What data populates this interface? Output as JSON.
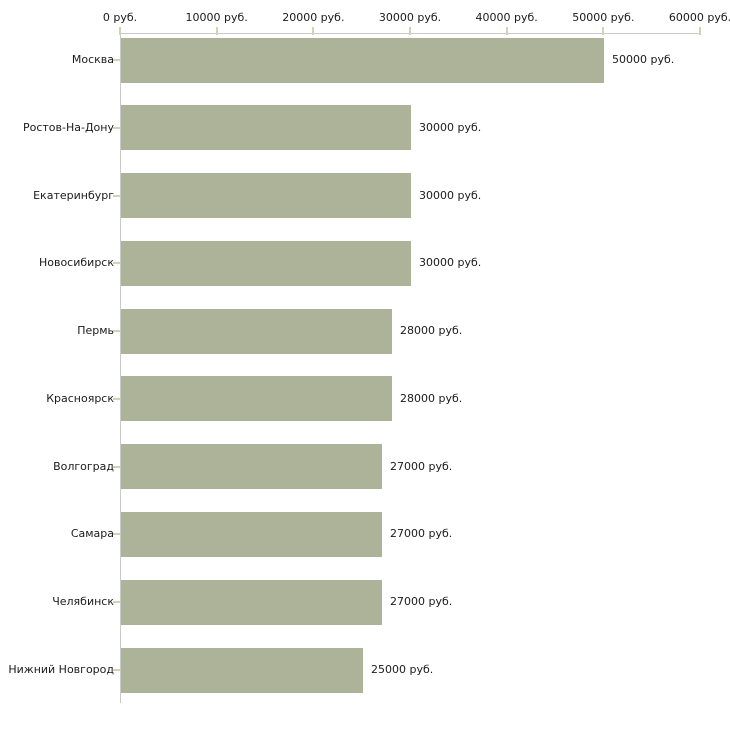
{
  "chart_data": {
    "type": "bar",
    "orientation": "horizontal",
    "title": "",
    "xlabel": "",
    "ylabel": "",
    "categories": [
      "Москва",
      "Ростов-На-Дону",
      "Екатеринбург",
      "Новосибирск",
      "Пермь",
      "Красноярск",
      "Волгоград",
      "Самара",
      "Челябинск",
      "Нижний Новгород"
    ],
    "values": [
      50000,
      30000,
      30000,
      30000,
      28000,
      28000,
      27000,
      27000,
      27000,
      25000
    ],
    "value_labels": [
      "50000 руб.",
      "30000 руб.",
      "30000 руб.",
      "30000 руб.",
      "28000 руб.",
      "28000 руб.",
      "27000 руб.",
      "27000 руб.",
      "27000 руб.",
      "25000 руб."
    ],
    "x_tick_labels": [
      "0 руб.",
      "10000 руб.",
      "20000 руб.",
      "30000 руб.",
      "40000 руб.",
      "50000 руб.",
      "60000 руб."
    ],
    "x_tick_values": [
      0,
      10000,
      20000,
      30000,
      40000,
      50000,
      60000
    ],
    "xlim": [
      0,
      60000
    ],
    "grid": false,
    "legend": false,
    "colors": {
      "bar_fill": "#adb399",
      "axis_line": "#c9c9c9",
      "tick_mark": "#d5d1b1",
      "text": "#1b1b1b"
    }
  }
}
